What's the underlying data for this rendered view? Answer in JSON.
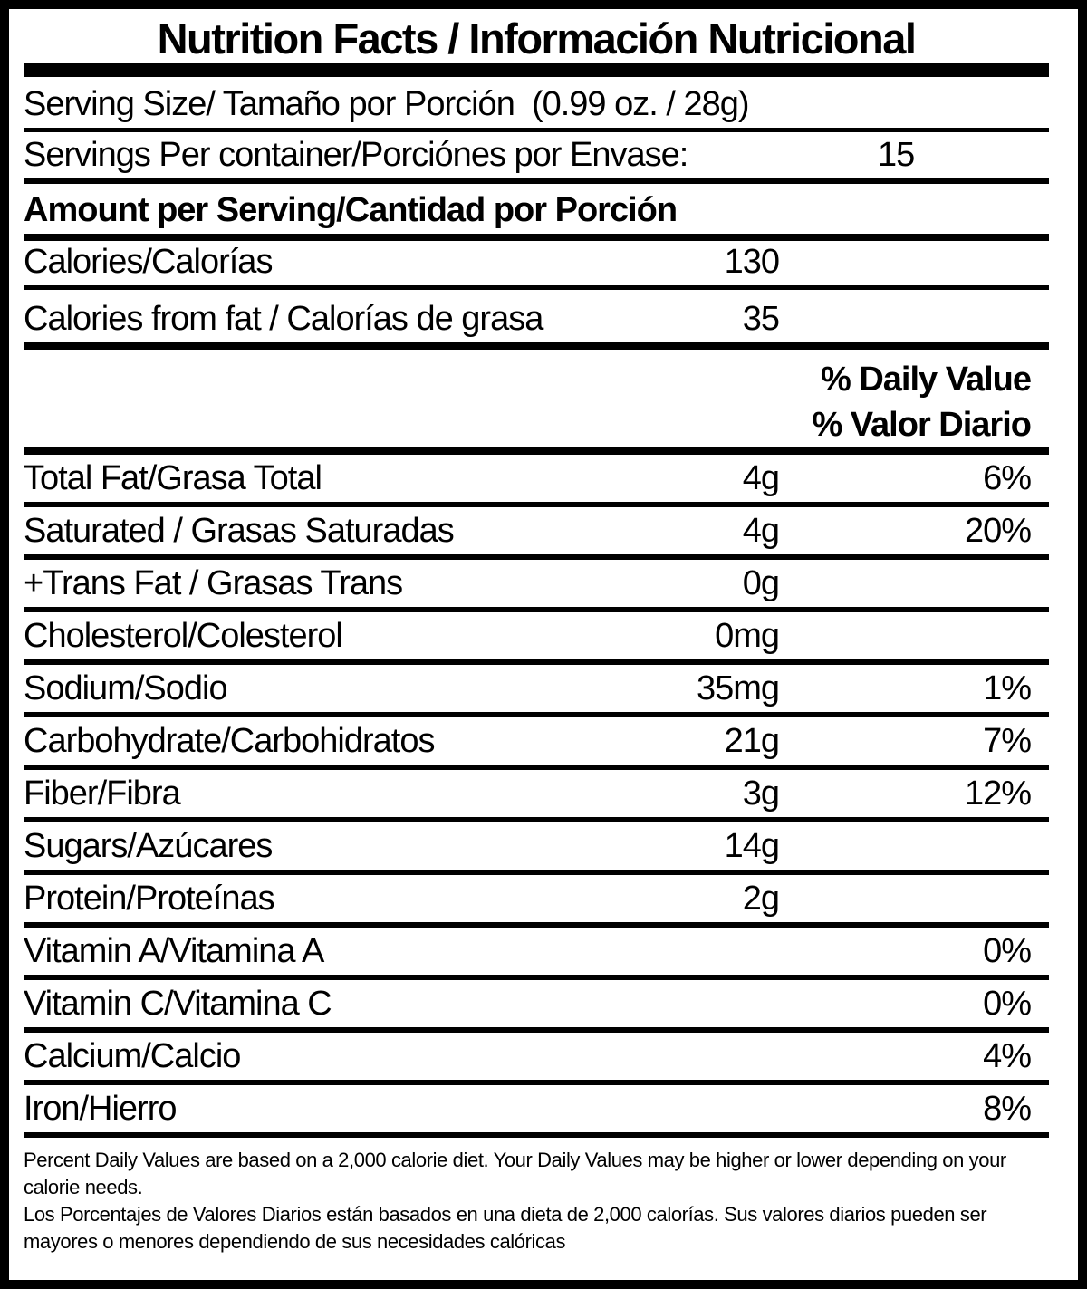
{
  "title": "Nutrition Facts / Información Nutricional",
  "serving": {
    "size_label": "Serving Size/ Tamaño por Porción  (0.99 oz. / 28g)",
    "per_container_label": "Servings Per container/Porciónes por Envase:",
    "per_container_value": "15",
    "amount_header": "Amount per Serving/Cantidad por Porción"
  },
  "calories": [
    {
      "label": "Calories/Calorías",
      "amount": "130"
    },
    {
      "label": "Calories from fat / Calorías de grasa",
      "amount": "35"
    }
  ],
  "daily_value_header": {
    "line1": "% Daily Value",
    "line2": "% Valor Diario"
  },
  "nutrients": [
    {
      "label": "Total Fat/Grasa Total",
      "amount": "4g",
      "dv": "6%"
    },
    {
      "label": "Saturated / Grasas Saturadas",
      "amount": "4g",
      "dv": "20%"
    },
    {
      "label": "+Trans Fat / Grasas Trans",
      "amount": "0g",
      "dv": ""
    },
    {
      "label": "Cholesterol/Colesterol",
      "amount": "0mg",
      "dv": ""
    },
    {
      "label": "Sodium/Sodio",
      "amount": "35mg",
      "dv": "1%"
    },
    {
      "label": "Carbohydrate/Carbohidratos",
      "amount": "21g",
      "dv": "7%"
    },
    {
      "label": "Fiber/Fibra",
      "amount": "3g",
      "dv": "12%"
    },
    {
      "label": "Sugars/Azúcares",
      "amount": "14g",
      "dv": ""
    },
    {
      "label": "Protein/Proteínas",
      "amount": "2g",
      "dv": ""
    },
    {
      "label": "Vitamin A/Vitamina A",
      "amount": "",
      "dv": "0%"
    },
    {
      "label": "Vitamin C/Vitamina C",
      "amount": "",
      "dv": "0%"
    },
    {
      "label": "Calcium/Calcio",
      "amount": "",
      "dv": "4%"
    },
    {
      "label": "Iron/Hierro",
      "amount": "",
      "dv": "8%"
    }
  ],
  "footnote": {
    "en": "Percent Daily Values are based on a 2,000 calorie diet. Your Daily Values may be higher or lower depending on your calorie needs.",
    "es": "Los Porcentajes de Valores Diarios están basados en una dieta de 2,000 calorías. Sus valores diarios pueden ser mayores o menores dependiendo de sus necesidades calóricas"
  },
  "colors": {
    "ink": "#000000",
    "background": "#ffffff"
  }
}
